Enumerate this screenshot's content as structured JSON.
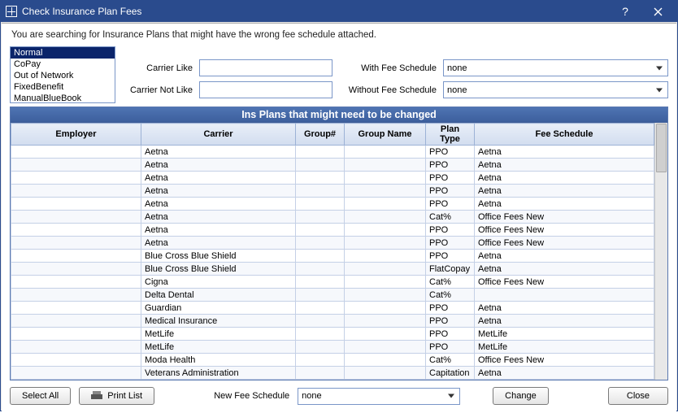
{
  "window": {
    "title": "Check Insurance Plan Fees"
  },
  "instruction": "You are searching for Insurance Plans that might have the wrong fee schedule attached.",
  "planTypeList": {
    "items": [
      "Normal",
      "CoPay",
      "Out of Network",
      "FixedBenefit",
      "ManualBlueBook"
    ],
    "selectedIndex": 0
  },
  "filters": {
    "carrierLikeLabel": "Carrier Like",
    "carrierLikeValue": "",
    "carrierNotLikeLabel": "Carrier Not Like",
    "carrierNotLikeValue": "",
    "withFeeLabel": "With Fee Schedule",
    "withFeeValue": "none",
    "withoutFeeLabel": "Without Fee Schedule",
    "withoutFeeValue": "none"
  },
  "table": {
    "title": "Ins Plans that might need to be changed",
    "columns": [
      "Employer",
      "Carrier",
      "Group#",
      "Group Name",
      "Plan Type",
      "Fee Schedule"
    ],
    "colWidths": [
      "160px",
      "190px",
      "60px",
      "100px",
      "60px",
      "auto"
    ],
    "rows": [
      [
        "",
        "Aetna",
        "",
        "",
        "PPO",
        "Aetna"
      ],
      [
        "",
        "Aetna",
        "",
        "",
        "PPO",
        "Aetna"
      ],
      [
        "",
        "Aetna",
        "",
        "",
        "PPO",
        "Aetna"
      ],
      [
        "",
        "Aetna",
        "",
        "",
        "PPO",
        "Aetna"
      ],
      [
        "",
        "Aetna",
        "",
        "",
        "PPO",
        "Aetna"
      ],
      [
        "",
        "Aetna",
        "",
        "",
        "Cat%",
        "Office Fees New"
      ],
      [
        "",
        "Aetna",
        "",
        "",
        "PPO",
        "Office Fees New"
      ],
      [
        "",
        "Aetna",
        "",
        "",
        "PPO",
        "Office Fees New"
      ],
      [
        "",
        "Blue Cross Blue Shield",
        "",
        "",
        "PPO",
        "Aetna"
      ],
      [
        "",
        "Blue Cross Blue Shield",
        "",
        "",
        "FlatCopay",
        "Aetna"
      ],
      [
        "",
        "Cigna",
        "",
        "",
        "Cat%",
        "Office Fees New"
      ],
      [
        "",
        "Delta Dental",
        "",
        "",
        "Cat%",
        ""
      ],
      [
        "",
        "Guardian",
        "",
        "",
        "PPO",
        "Aetna"
      ],
      [
        "",
        "Medical Insurance",
        "",
        "",
        "PPO",
        "Aetna"
      ],
      [
        "",
        "MetLife",
        "",
        "",
        "PPO",
        "MetLife"
      ],
      [
        "",
        "MetLife",
        "",
        "",
        "PPO",
        "MetLife"
      ],
      [
        "",
        "Moda Health",
        "",
        "",
        "Cat%",
        "Office Fees New"
      ],
      [
        "",
        "Veterans Administration",
        "",
        "",
        "Capitation",
        "Aetna"
      ]
    ]
  },
  "bottom": {
    "selectAllLabel": "Select All",
    "printListLabel": "Print List",
    "newFeeLabel": "New Fee Schedule",
    "newFeeValue": "none",
    "changeLabel": "Change",
    "closeLabel": "Close"
  },
  "colors": {
    "accent": "#2a4b8d",
    "headerGradTop": "#e8eef8",
    "headerGradBot": "#d2ddef"
  }
}
